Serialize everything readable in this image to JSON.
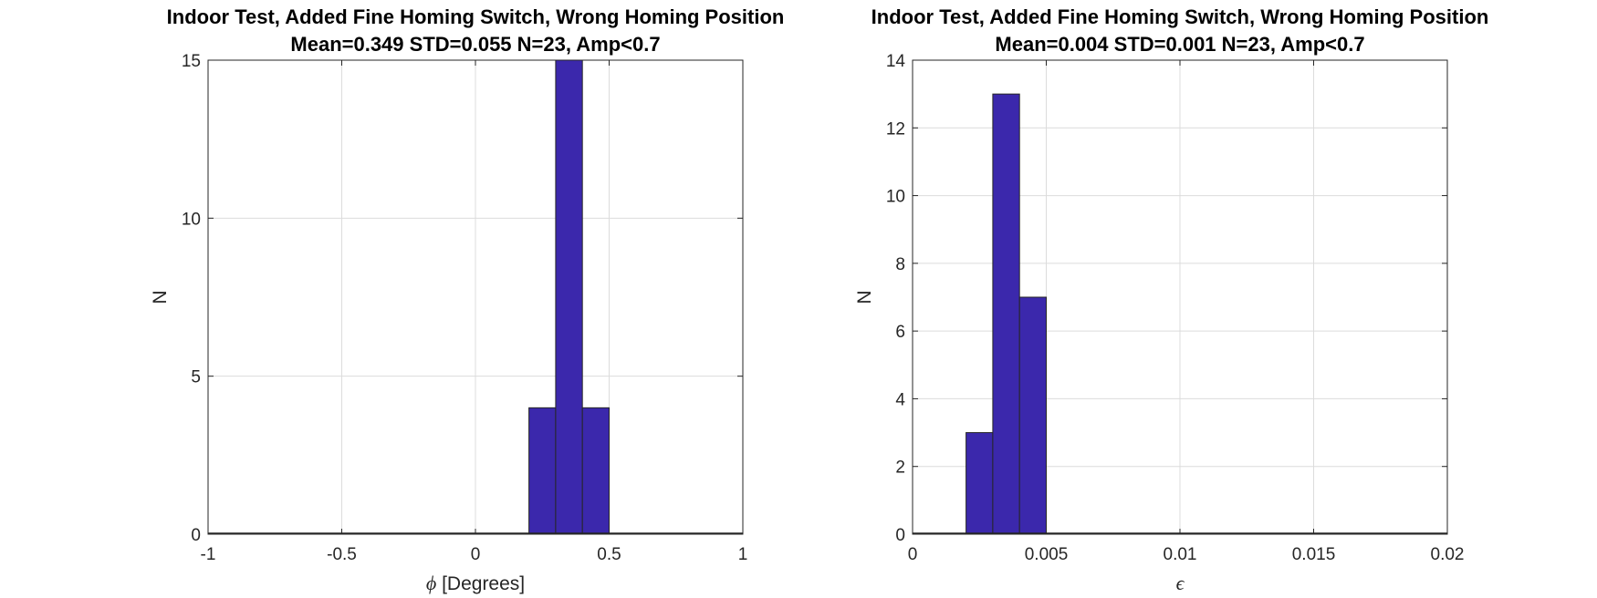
{
  "chart_data": [
    {
      "type": "bar",
      "subtype": "histogram",
      "title": "Indoor Test, Added Fine Homing Switch, Wrong Homing Position",
      "subtitle": "Mean=0.349 STD=0.055 N=23, Amp<0.7",
      "xlabel_symbol": "ϕ",
      "xlabel_text": " [Degrees]",
      "ylabel": "N",
      "xlim": [
        -1,
        1
      ],
      "ylim": [
        0,
        15
      ],
      "xticks": [
        -1,
        -0.5,
        0,
        0.5,
        1
      ],
      "xtick_labels": [
        "-1",
        "-0.5",
        "0",
        "0.5",
        "1"
      ],
      "yticks": [
        0,
        5,
        10,
        15
      ],
      "ytick_labels": [
        "0",
        "5",
        "10",
        "15"
      ],
      "bin_edges": [
        0.2,
        0.3,
        0.4,
        0.5
      ],
      "values": [
        4,
        15,
        4
      ],
      "grid": true,
      "bar_color": "#3b28ac"
    },
    {
      "type": "bar",
      "subtype": "histogram",
      "title": "Indoor Test, Added Fine Homing Switch, Wrong Homing Position",
      "subtitle": "Mean=0.004 STD=0.001 N=23, Amp<0.7",
      "xlabel_symbol": "ϵ",
      "xlabel_text": "",
      "ylabel": "N",
      "xlim": [
        0,
        0.02
      ],
      "ylim": [
        0,
        14
      ],
      "xticks": [
        0,
        0.005,
        0.01,
        0.015,
        0.02
      ],
      "xtick_labels": [
        "0",
        "0.005",
        "0.01",
        "0.015",
        "0.02"
      ],
      "yticks": [
        0,
        2,
        4,
        6,
        8,
        10,
        12,
        14
      ],
      "ytick_labels": [
        "0",
        "2",
        "4",
        "6",
        "8",
        "10",
        "12",
        "14"
      ],
      "bin_edges": [
        0.002,
        0.003,
        0.004,
        0.005
      ],
      "values": [
        3,
        13,
        7
      ],
      "grid": true,
      "bar_color": "#3b28ac"
    }
  ]
}
